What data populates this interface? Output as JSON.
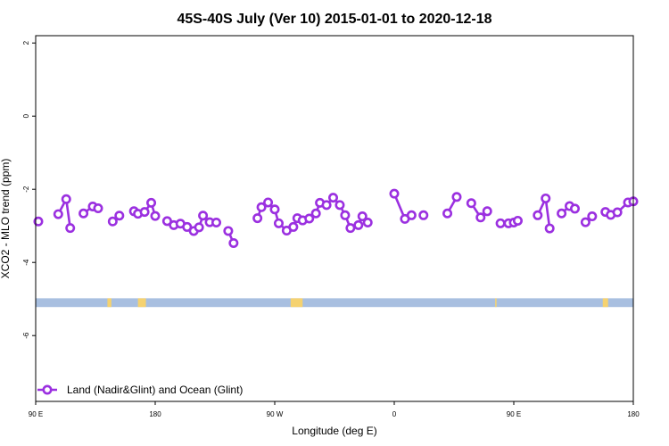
{
  "chart_data": {
    "type": "line",
    "title": "45S-40S July (Ver 10)   2015-01-01 to 2020-12-18",
    "xlabel": "Longitude (deg E)",
    "ylabel": "XCO2 - MLO trend (ppm)",
    "xlim": [
      90,
      540
    ],
    "ylim": [
      -7.8,
      2.2
    ],
    "x_ticks": [
      {
        "value": 90,
        "label": "90 E"
      },
      {
        "value": 180,
        "label": "180"
      },
      {
        "value": 270,
        "label": "90 W"
      },
      {
        "value": 360,
        "label": "0"
      },
      {
        "value": 450,
        "label": "90 E"
      },
      {
        "value": 540,
        "label": "180"
      }
    ],
    "y_ticks": [
      {
        "value": 2,
        "label": "2"
      },
      {
        "value": 0,
        "label": "0"
      },
      {
        "value": -2,
        "label": "-2"
      },
      {
        "value": -4,
        "label": "-4"
      },
      {
        "value": -6,
        "label": "-6"
      }
    ],
    "series": [
      {
        "name": "Land (Nadir&Glint) and Ocean (Glint)",
        "color": "#9b30e0",
        "segments": [
          [
            [
              92,
              -2.88
            ]
          ],
          [
            [
              107,
              -2.68
            ],
            [
              113,
              -2.27
            ],
            [
              116,
              -3.06
            ]
          ],
          [
            [
              126,
              -2.66
            ],
            [
              133,
              -2.47
            ],
            [
              137,
              -2.52
            ]
          ],
          [
            [
              148,
              -2.88
            ],
            [
              153,
              -2.72
            ]
          ],
          [
            [
              164,
              -2.6
            ],
            [
              167,
              -2.67
            ],
            [
              172,
              -2.62
            ],
            [
              177,
              -2.37
            ],
            [
              180,
              -2.73
            ]
          ],
          [
            [
              189,
              -2.87
            ],
            [
              194,
              -2.98
            ],
            [
              199,
              -2.94
            ],
            [
              204,
              -3.03
            ],
            [
              209,
              -3.14
            ],
            [
              213,
              -3.04
            ],
            [
              216,
              -2.72
            ],
            [
              221,
              -2.9
            ],
            [
              226,
              -2.91
            ]
          ],
          [
            [
              235,
              -3.14
            ],
            [
              239,
              -3.47
            ]
          ],
          [
            [
              257,
              -2.79
            ],
            [
              260,
              -2.49
            ],
            [
              265,
              -2.36
            ],
            [
              270,
              -2.55
            ],
            [
              273,
              -2.93
            ],
            [
              279,
              -3.13
            ],
            [
              284,
              -3.03
            ],
            [
              287,
              -2.79
            ],
            [
              291,
              -2.85
            ],
            [
              296,
              -2.8
            ],
            [
              301,
              -2.66
            ],
            [
              304,
              -2.37
            ],
            [
              309,
              -2.43
            ],
            [
              314,
              -2.23
            ],
            [
              319,
              -2.43
            ],
            [
              323,
              -2.71
            ],
            [
              327,
              -3.06
            ],
            [
              333,
              -2.98
            ],
            [
              336,
              -2.74
            ],
            [
              340,
              -2.91
            ]
          ],
          [
            [
              360,
              -2.12
            ],
            [
              368,
              -2.81
            ],
            [
              373,
              -2.71
            ]
          ],
          [
            [
              382,
              -2.71
            ]
          ],
          [
            [
              400,
              -2.66
            ],
            [
              407,
              -2.21
            ]
          ],
          [
            [
              418,
              -2.38
            ],
            [
              425,
              -2.77
            ],
            [
              430,
              -2.6
            ]
          ],
          [
            [
              440,
              -2.93
            ],
            [
              446,
              -2.93
            ],
            [
              450,
              -2.91
            ],
            [
              453,
              -2.86
            ]
          ],
          [
            [
              468,
              -2.71
            ],
            [
              474,
              -2.25
            ],
            [
              477,
              -3.07
            ]
          ],
          [
            [
              486,
              -2.66
            ],
            [
              492,
              -2.46
            ],
            [
              496,
              -2.53
            ]
          ],
          [
            [
              504,
              -2.9
            ],
            [
              509,
              -2.74
            ]
          ],
          [
            [
              519,
              -2.62
            ],
            [
              523,
              -2.7
            ],
            [
              528,
              -2.63
            ],
            [
              536,
              -2.36
            ],
            [
              540,
              -2.33
            ]
          ]
        ]
      }
    ],
    "land_ocean_bar": {
      "y_top": -4.98,
      "y_bottom": -5.22,
      "ocean_color": "#a8bfe0",
      "land_color": "#f5d270",
      "land_ranges": [
        [
          144,
          147
        ],
        [
          167,
          173
        ],
        [
          282,
          291
        ],
        [
          436,
          437
        ],
        [
          517,
          521
        ]
      ]
    },
    "legend": {
      "position": "bottom-left",
      "entries": [
        "Land (Nadir&Glint) and Ocean (Glint)"
      ]
    },
    "grid": false
  }
}
